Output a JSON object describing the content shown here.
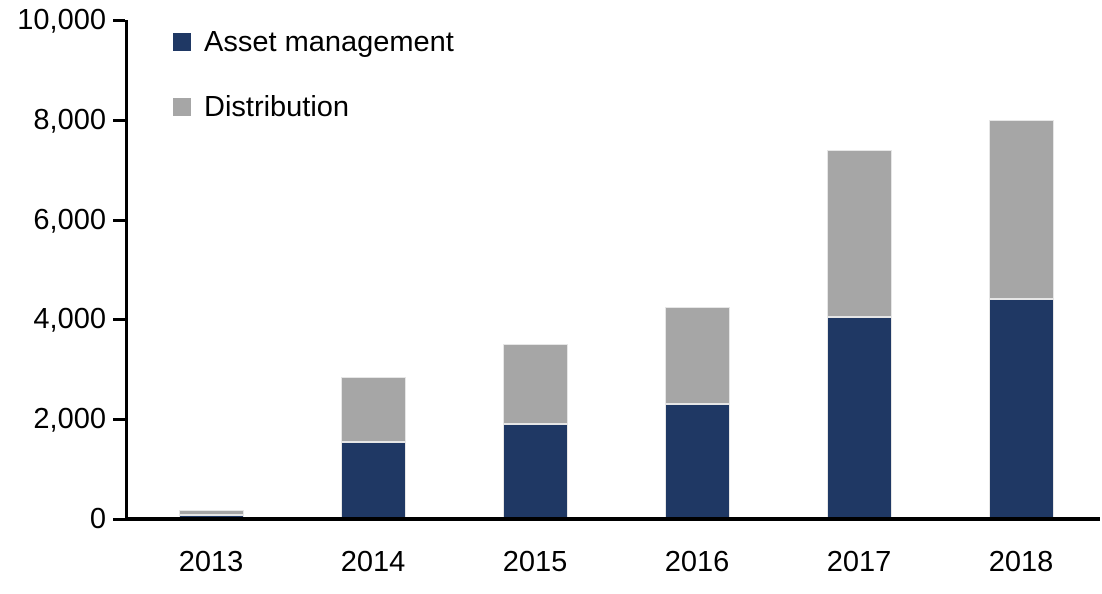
{
  "chart_data": {
    "type": "bar",
    "stacked": true,
    "title": "",
    "xlabel": "",
    "ylabel": "",
    "categories": [
      "2013",
      "2014",
      "2015",
      "2016",
      "2017",
      "2018"
    ],
    "series": [
      {
        "name": "Asset management",
        "color": "#1F3864",
        "values": [
          90,
          1550,
          1900,
          2300,
          4050,
          4400
        ]
      },
      {
        "name": "Distribution",
        "color": "#A6A6A6",
        "values": [
          100,
          1300,
          1600,
          1950,
          3350,
          3600
        ]
      }
    ],
    "totals": [
      190,
      2850,
      3500,
      4250,
      7400,
      8000
    ],
    "ylim": [
      0,
      10000
    ],
    "yticks": [
      0,
      2000,
      4000,
      6000,
      8000,
      10000
    ],
    "ytick_labels": [
      "0",
      "2,000",
      "4,000",
      "6,000",
      "8,000",
      "10,000"
    ],
    "grid": false,
    "legend_position": "top-left-inside",
    "axis_color": "#000000",
    "bar_border_color": "#E6E6E6",
    "background_color": "#FFFFFF"
  }
}
